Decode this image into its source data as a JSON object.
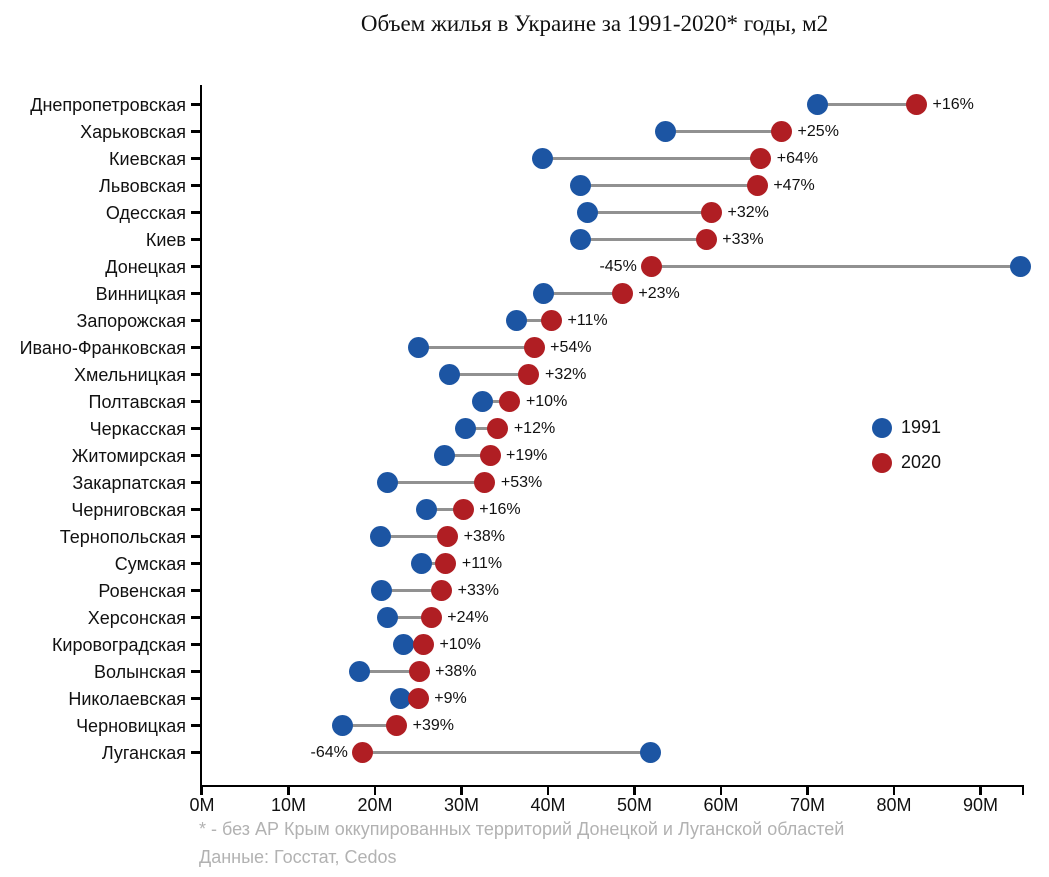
{
  "title": "Объем жилья в Украине за 1991-2020* годы, м2",
  "colors": {
    "blue": "#1C55A3",
    "red": "#B01E23",
    "connector": "#919191",
    "axis": "#000000",
    "footnote_gray": "#B2B2B2"
  },
  "legend": {
    "items": [
      {
        "label": "1991",
        "color_key": "blue"
      },
      {
        "label": "2020",
        "color_key": "red"
      }
    ]
  },
  "footnote": {
    "line1": "* - без АР Крым оккупированных территорий Донецкой и Луганской областей",
    "line2": "Данные: Госстат, Cedos"
  },
  "chart_data": {
    "type": "dumbbell",
    "title": "Объем жилья в Украине за 1991-2020* годы, м2",
    "unit": "м2",
    "xlabel": "",
    "ylabel": "",
    "xlim": [
      0,
      95
    ],
    "x_tick_step": 10000000,
    "x_ticks": [
      "0M",
      "10M",
      "20M",
      "30M",
      "40M",
      "50M",
      "60M",
      "70M",
      "80M",
      "90M"
    ],
    "series_names": [
      "1991",
      "2020"
    ],
    "legend_position": "middle-right",
    "grid": false,
    "rows": [
      {
        "region": "Днепропетровская",
        "v1991": 71.2,
        "v2020": 82.6,
        "pct": "+16%"
      },
      {
        "region": "Харьковская",
        "v1991": 53.6,
        "v2020": 67.0,
        "pct": "+25%"
      },
      {
        "region": "Киевская",
        "v1991": 39.4,
        "v2020": 64.6,
        "pct": "+64%"
      },
      {
        "region": "Львовская",
        "v1991": 43.7,
        "v2020": 64.2,
        "pct": "+47%"
      },
      {
        "region": "Одесская",
        "v1991": 44.6,
        "v2020": 58.9,
        "pct": "+32%"
      },
      {
        "region": "Киев",
        "v1991": 43.8,
        "v2020": 58.3,
        "pct": "+33%"
      },
      {
        "region": "Донецкая",
        "v1991": 94.6,
        "v2020": 52.0,
        "pct": "-45%"
      },
      {
        "region": "Винницкая",
        "v1991": 39.5,
        "v2020": 48.6,
        "pct": "+23%"
      },
      {
        "region": "Запорожская",
        "v1991": 36.4,
        "v2020": 40.4,
        "pct": "+11%"
      },
      {
        "region": "Ивано-Франковская",
        "v1991": 25.0,
        "v2020": 38.4,
        "pct": "+54%"
      },
      {
        "region": "Хмельницкая",
        "v1991": 28.6,
        "v2020": 37.8,
        "pct": "+32%"
      },
      {
        "region": "Полтавская",
        "v1991": 32.4,
        "v2020": 35.6,
        "pct": "+10%"
      },
      {
        "region": "Черкасская",
        "v1991": 30.5,
        "v2020": 34.2,
        "pct": "+12%"
      },
      {
        "region": "Житомирская",
        "v1991": 28.0,
        "v2020": 33.3,
        "pct": "+19%"
      },
      {
        "region": "Закарпатская",
        "v1991": 21.4,
        "v2020": 32.7,
        "pct": "+53%"
      },
      {
        "region": "Черниговская",
        "v1991": 26.0,
        "v2020": 30.2,
        "pct": "+16%"
      },
      {
        "region": "Тернопольская",
        "v1991": 20.6,
        "v2020": 28.4,
        "pct": "+38%"
      },
      {
        "region": "Сумская",
        "v1991": 25.4,
        "v2020": 28.2,
        "pct": "+11%"
      },
      {
        "region": "Ровенская",
        "v1991": 20.8,
        "v2020": 27.7,
        "pct": "+33%"
      },
      {
        "region": "Херсонская",
        "v1991": 21.4,
        "v2020": 26.5,
        "pct": "+24%"
      },
      {
        "region": "Кировоградская",
        "v1991": 23.3,
        "v2020": 25.6,
        "pct": "+10%"
      },
      {
        "region": "Волынская",
        "v1991": 18.2,
        "v2020": 25.1,
        "pct": "+38%"
      },
      {
        "region": "Николаевская",
        "v1991": 22.9,
        "v2020": 25.0,
        "pct": "+9%"
      },
      {
        "region": "Черновицкая",
        "v1991": 16.2,
        "v2020": 22.5,
        "pct": "+39%"
      },
      {
        "region": "Луганская",
        "v1991": 51.8,
        "v2020": 18.6,
        "pct": "-64%"
      }
    ]
  }
}
